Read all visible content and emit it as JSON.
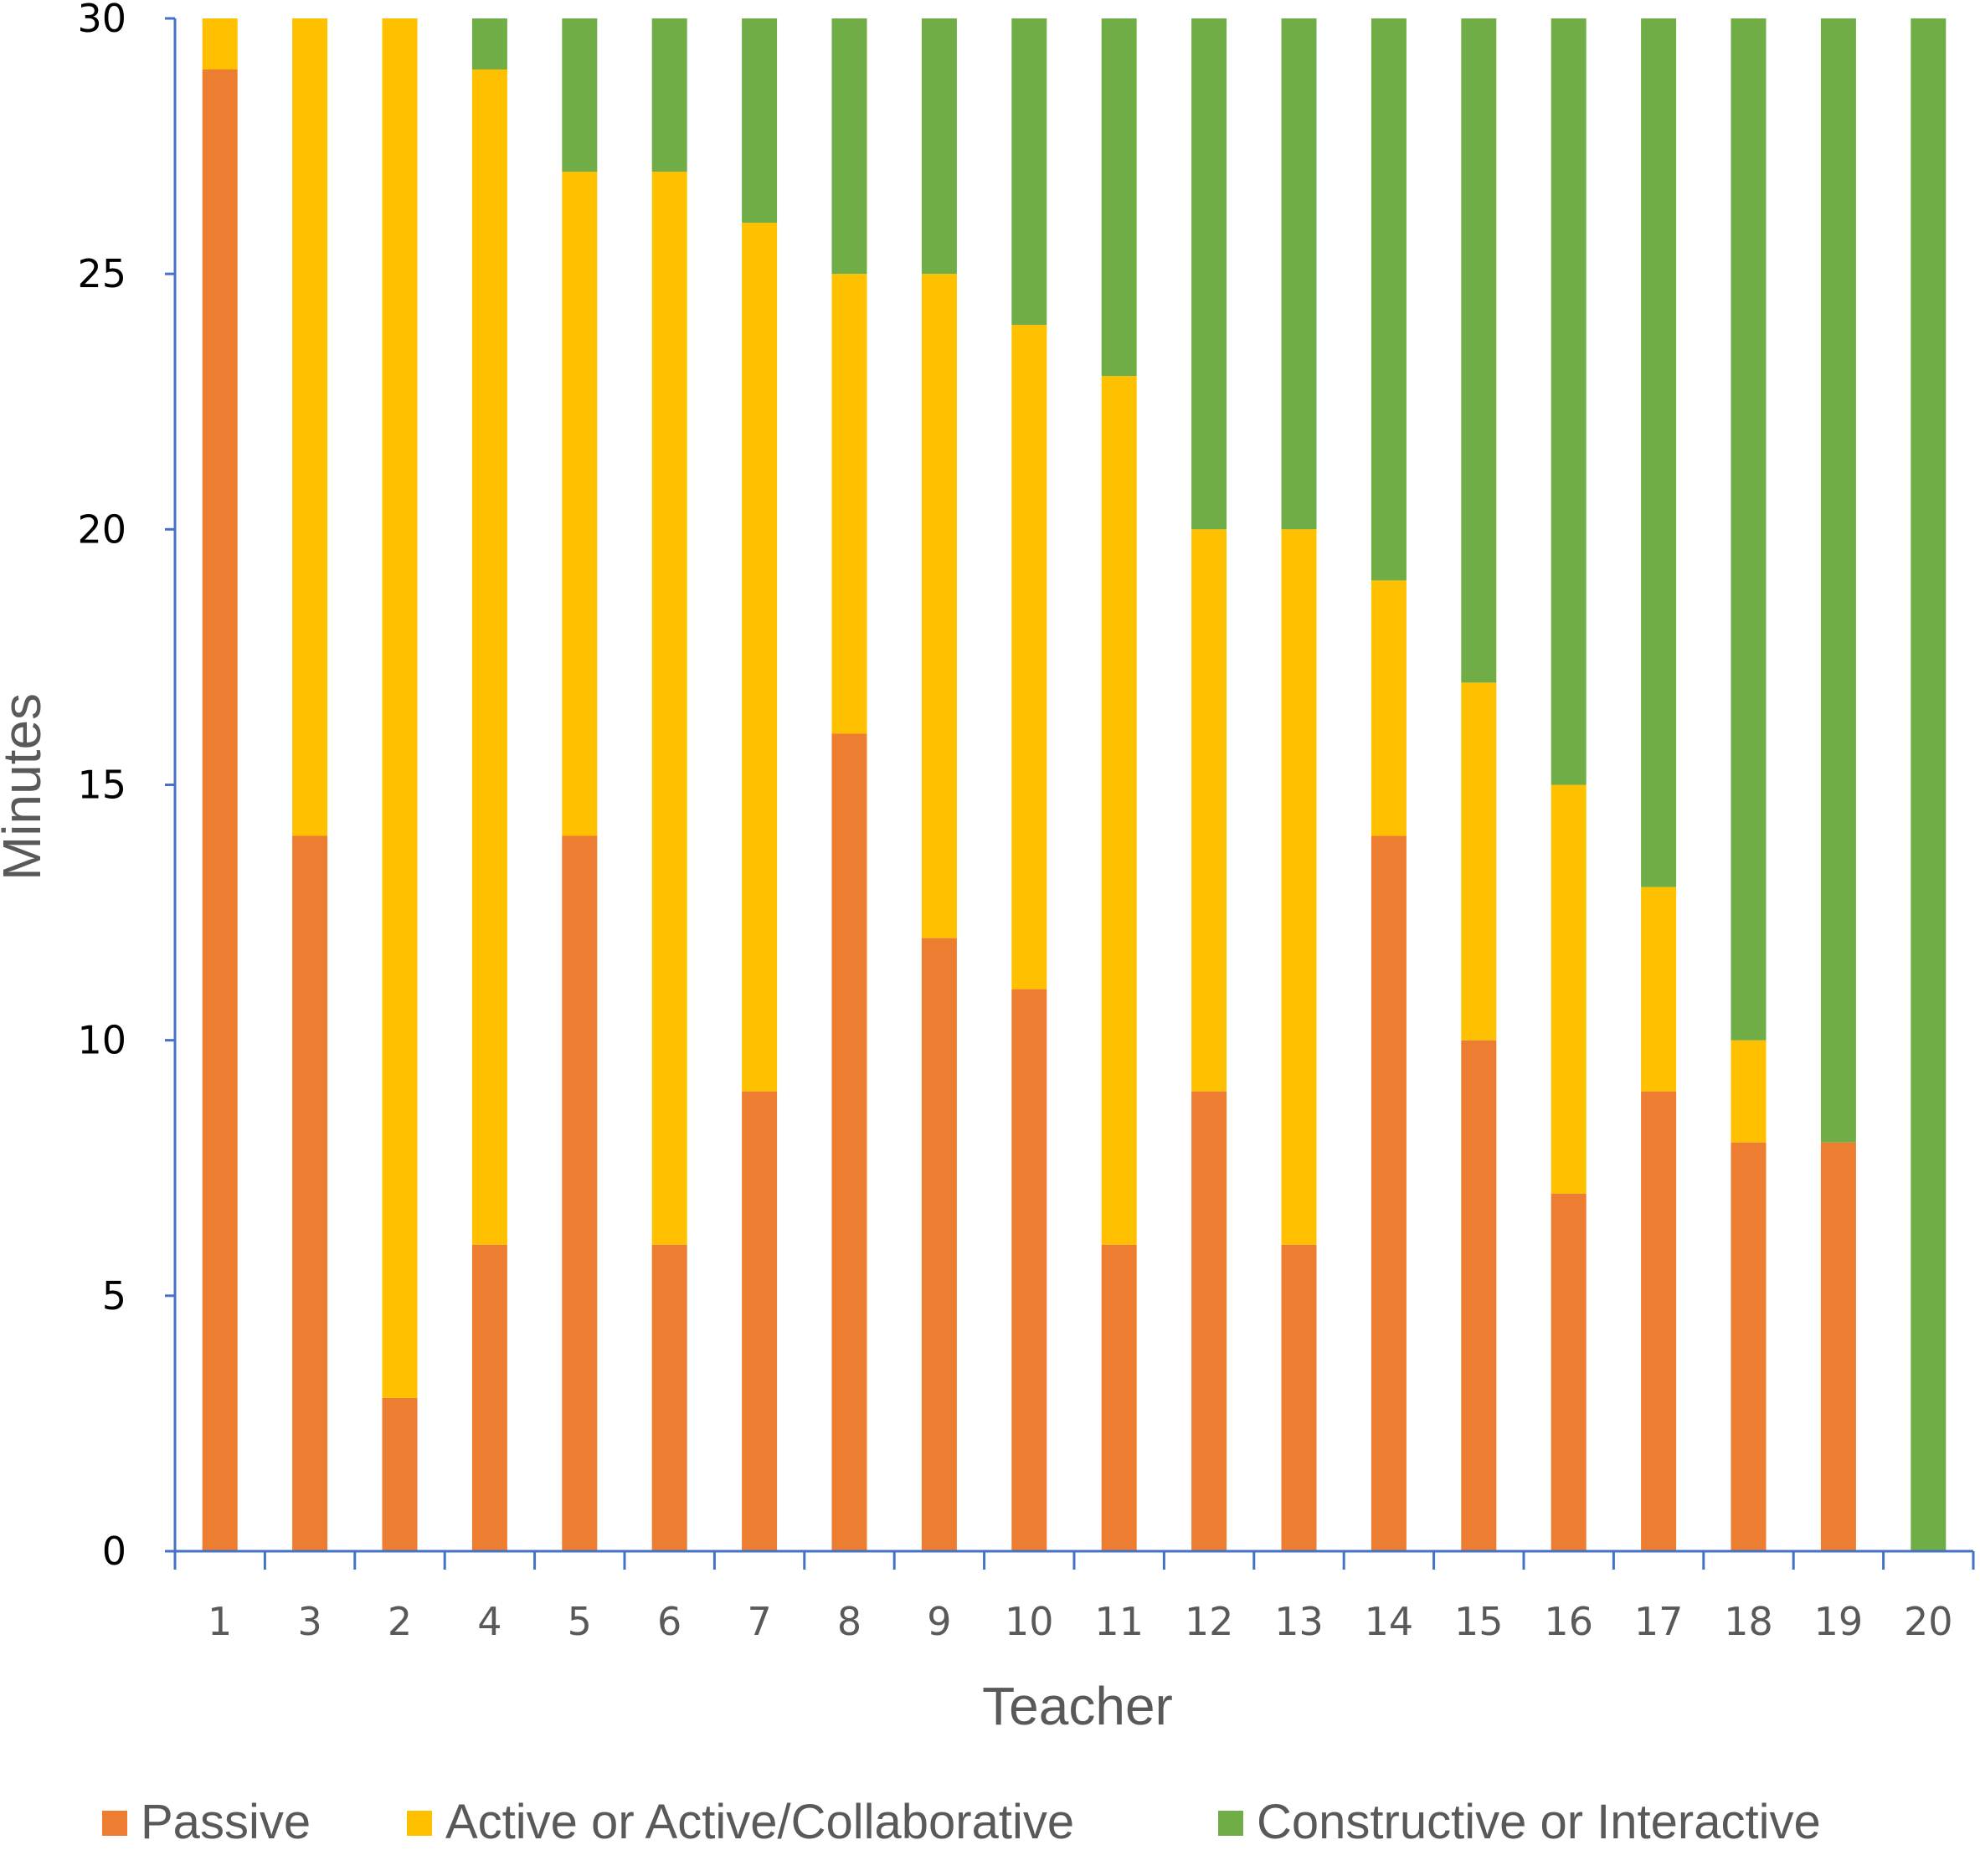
{
  "chart_data": {
    "type": "bar",
    "stacked": true,
    "xlabel": "Teacher",
    "ylabel": "Minutes",
    "ylim": [
      0,
      30
    ],
    "yticks": [
      0,
      5,
      10,
      15,
      20,
      25,
      30
    ],
    "categories": [
      "1",
      "3",
      "2",
      "4",
      "5",
      "6",
      "7",
      "8",
      "9",
      "10",
      "11",
      "12",
      "13",
      "14",
      "15",
      "16",
      "17",
      "18",
      "19",
      "20"
    ],
    "series": [
      {
        "name": "Passive",
        "color": "#ED7D31",
        "values": [
          29,
          14,
          3,
          6,
          14,
          6,
          9,
          16,
          12,
          11,
          6,
          9,
          6,
          14,
          10,
          7,
          9,
          8,
          8,
          0
        ]
      },
      {
        "name": "Active or Active/Collaborative",
        "color": "#FFC000",
        "values": [
          1,
          16,
          27,
          23,
          13,
          21,
          17,
          9,
          13,
          13,
          17,
          11,
          14,
          5,
          7,
          8,
          4,
          2,
          0,
          0
        ]
      },
      {
        "name": "Constructive or Interactive",
        "color": "#70AD47",
        "values": [
          0,
          0,
          0,
          1,
          3,
          3,
          4,
          5,
          5,
          6,
          7,
          10,
          10,
          11,
          13,
          15,
          17,
          20,
          22,
          30
        ]
      }
    ],
    "grid": false,
    "legend_position": "bottom",
    "axis_color": "#4472C4"
  }
}
